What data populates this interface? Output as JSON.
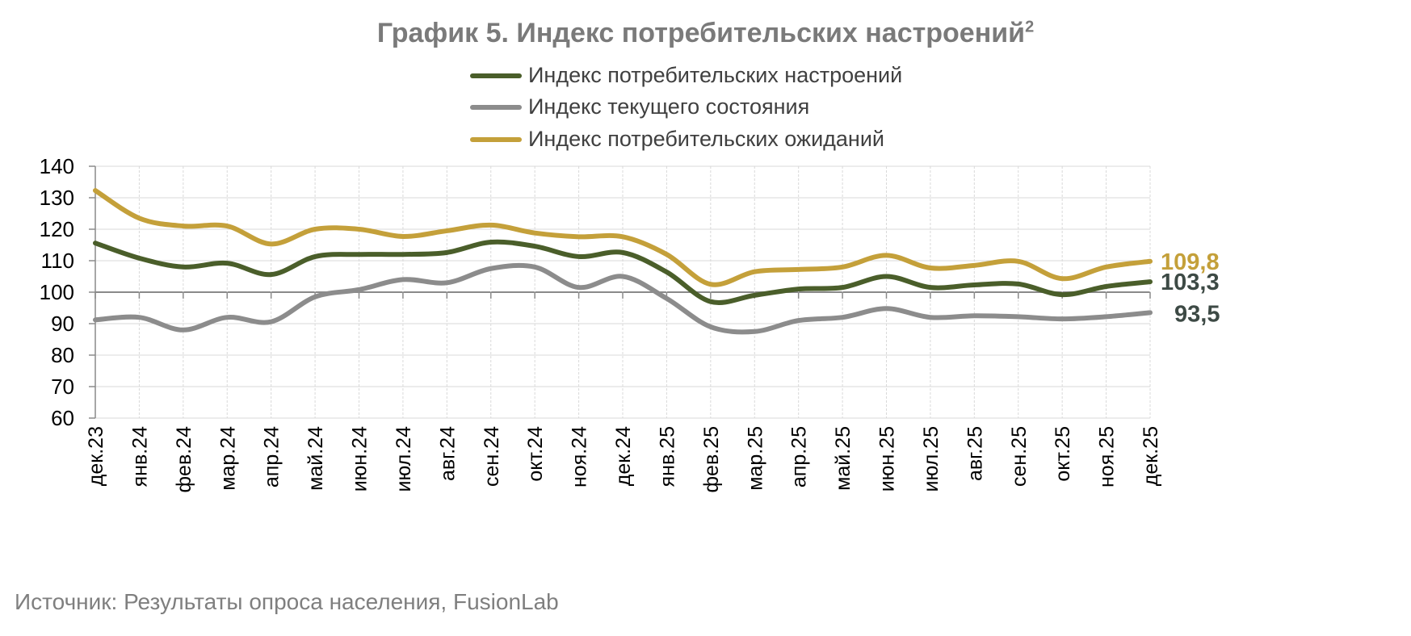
{
  "chart_data": {
    "type": "line",
    "title": "График 5. Индекс потребительских настроений",
    "title_superscript": "2",
    "categories": [
      "дек.23",
      "янв.24",
      "фев.24",
      "мар.24",
      "апр.24",
      "май.24",
      "июн.24",
      "июл.24",
      "авг.24",
      "сен.24",
      "окт.24",
      "ноя.24",
      "дек.24",
      "янв.25",
      "фев.25",
      "мар.25",
      "апр.25",
      "май.25",
      "июн.25",
      "июл.25",
      "авг.25",
      "сен.25",
      "окт.25",
      "ноя.25",
      "дек.25"
    ],
    "ylim": [
      60,
      140
    ],
    "yticks": [
      60,
      70,
      80,
      90,
      100,
      110,
      120,
      130,
      140
    ],
    "grid": true,
    "legend": "top",
    "series": [
      {
        "name": "Индекс потребительских настроений",
        "color": "#4a5e2a",
        "end_label": "103,3",
        "end_label_color": "#3d4a45",
        "values": [
          115.6,
          110.8,
          108,
          109.2,
          105.6,
          111.3,
          112,
          112,
          112.6,
          115.9,
          114.6,
          111.3,
          112.6,
          106.4,
          97,
          99,
          101,
          101.5,
          105,
          101.5,
          102.3,
          102.6,
          99.2,
          101.8,
          103.3
        ]
      },
      {
        "name": "Индекс текущего состояния",
        "color": "#8c8c8c",
        "end_label": "93,5",
        "end_label_color": "#3d4a45",
        "values": [
          91.2,
          92,
          88,
          92,
          90.6,
          98.5,
          100.8,
          104,
          103,
          107.5,
          108,
          101.5,
          105,
          98,
          89,
          87.5,
          91,
          92,
          94.8,
          92,
          92.5,
          92.2,
          91.5,
          92.2,
          93.5
        ]
      },
      {
        "name": "Индекс потребительских ожиданий",
        "color": "#c4a03a",
        "end_label": "109,8",
        "end_label_color": "#c4a03a",
        "values": [
          132.3,
          123.5,
          121,
          121,
          115.3,
          120,
          120,
          117.7,
          119.5,
          121.3,
          118.8,
          117.6,
          117.6,
          112,
          102.5,
          106.5,
          107.2,
          108,
          111.7,
          107.7,
          108.5,
          109.8,
          104.3,
          108,
          109.8
        ]
      }
    ]
  },
  "source": "Источник: Результаты опроса населения, FusionLab"
}
